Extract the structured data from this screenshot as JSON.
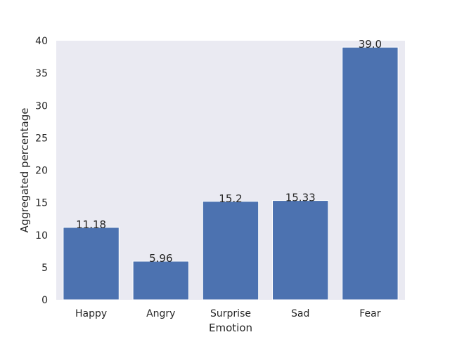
{
  "chart_data": {
    "type": "bar",
    "title": "",
    "xlabel": "Emotion",
    "ylabel": "Aggregated percentage",
    "categories": [
      "Happy",
      "Angry",
      "Surprise",
      "Sad",
      "Fear"
    ],
    "values": [
      11.18,
      5.96,
      15.2,
      15.33,
      39.0
    ],
    "data_labels": [
      "11.18",
      "5.96",
      "15.2",
      "15.33",
      "39.0"
    ],
    "ylim": [
      0,
      40
    ],
    "yticks": [
      0,
      5,
      10,
      15,
      20,
      25,
      30,
      35,
      40
    ],
    "grid": false,
    "legend": "none",
    "colors": {
      "bar": "#4c72b0",
      "plot_background": "#eaeaf2",
      "text": "#262626"
    }
  }
}
